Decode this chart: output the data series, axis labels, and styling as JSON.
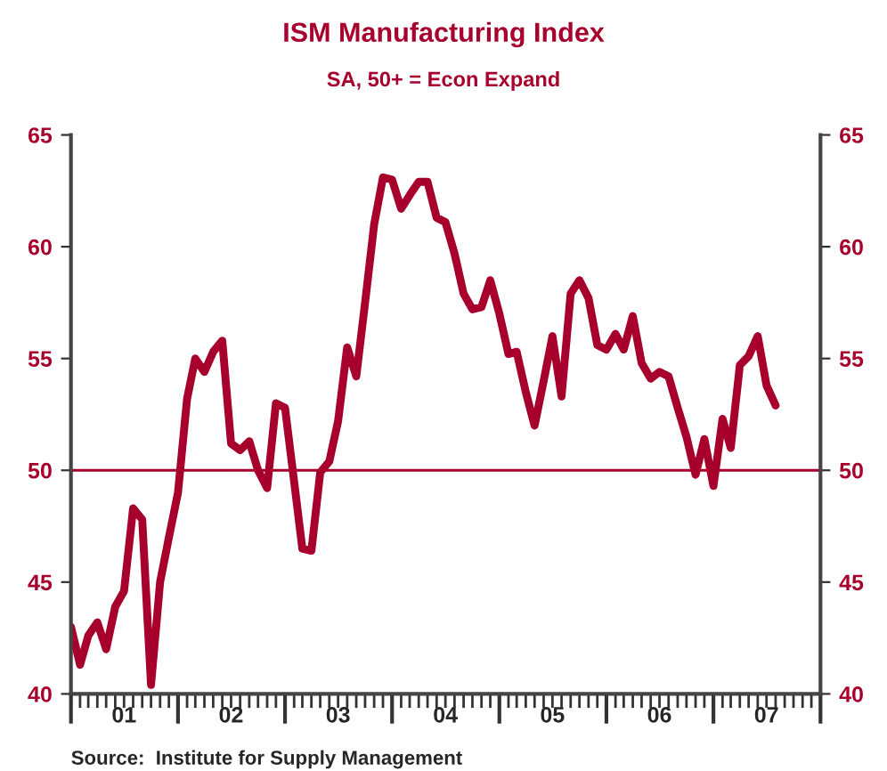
{
  "chart_data": {
    "type": "line",
    "title": "ISM Manufacturing Index",
    "subtitle": "SA, 50+ = Econ Expand",
    "x": [
      "2001-01",
      "2001-02",
      "2001-03",
      "2001-04",
      "2001-05",
      "2001-06",
      "2001-07",
      "2001-08",
      "2001-09",
      "2001-10",
      "2001-11",
      "2001-12",
      "2002-01",
      "2002-02",
      "2002-03",
      "2002-04",
      "2002-05",
      "2002-06",
      "2002-07",
      "2002-08",
      "2002-09",
      "2002-10",
      "2002-11",
      "2002-12",
      "2003-01",
      "2003-02",
      "2003-03",
      "2003-04",
      "2003-05",
      "2003-06",
      "2003-07",
      "2003-08",
      "2003-09",
      "2003-10",
      "2003-11",
      "2003-12",
      "2004-01",
      "2004-02",
      "2004-03",
      "2004-04",
      "2004-05",
      "2004-06",
      "2004-07",
      "2004-08",
      "2004-09",
      "2004-10",
      "2004-11",
      "2004-12",
      "2005-01",
      "2005-02",
      "2005-03",
      "2005-04",
      "2005-05",
      "2005-06",
      "2005-07",
      "2005-08",
      "2005-09",
      "2005-10",
      "2005-11",
      "2005-12",
      "2006-01",
      "2006-02",
      "2006-03",
      "2006-04",
      "2006-05",
      "2006-06",
      "2006-07",
      "2006-08",
      "2006-09",
      "2006-10",
      "2006-11",
      "2006-12",
      "2007-01",
      "2007-02",
      "2007-03",
      "2007-04",
      "2007-05",
      "2007-06",
      "2007-07",
      "2007-08"
    ],
    "series": [
      {
        "color": "#a8002c",
        "values": [
          43,
          41.3,
          42.6,
          43.2,
          42,
          43.9,
          44.6,
          48.3,
          47.8,
          40.4,
          45,
          47,
          49,
          53.2,
          55,
          54.4,
          55.3,
          55.8,
          51.2,
          50.9,
          51.3,
          50,
          49.2,
          53,
          52.8,
          49.5,
          46.5,
          46.4,
          49.9,
          50.4,
          52.2,
          55.5,
          54.2,
          57.5,
          61,
          63.1,
          63,
          61.7,
          62.3,
          62.9,
          62.9,
          61.3,
          61.1,
          59.7,
          57.9,
          57.2,
          57.3,
          58.5,
          57,
          55.2,
          55.3,
          53.5,
          52,
          54,
          56,
          53.3,
          57.9,
          58.5,
          57.7,
          55.6,
          55.4,
          56.1,
          55.4,
          56.9,
          54.8,
          54.1,
          54.4,
          54.2,
          52.8,
          51.5,
          49.8,
          51.4,
          49.3,
          52.3,
          51,
          54.7,
          55.1,
          56,
          53.8,
          52.9
        ]
      }
    ],
    "xlim": [
      "2001-01",
      "2008-01"
    ],
    "xticks": [
      {
        "value": "2001-01",
        "label": null
      },
      {
        "value": "2001-07",
        "label": "01"
      },
      {
        "value": "2002-01",
        "label": null
      },
      {
        "value": "2002-07",
        "label": "02"
      },
      {
        "value": "2003-01",
        "label": null
      },
      {
        "value": "2003-07",
        "label": "03"
      },
      {
        "value": "2004-01",
        "label": null
      },
      {
        "value": "2004-07",
        "label": "04"
      },
      {
        "value": "2005-01",
        "label": null
      },
      {
        "value": "2005-07",
        "label": "05"
      },
      {
        "value": "2006-01",
        "label": null
      },
      {
        "value": "2006-07",
        "label": "06"
      },
      {
        "value": "2007-01",
        "label": null
      },
      {
        "value": "2007-07",
        "label": "07"
      },
      {
        "value": "2008-01",
        "label": null
      }
    ],
    "ylim": [
      40,
      65
    ],
    "yticks": [
      40,
      45,
      50,
      55,
      60,
      65
    ],
    "y2lim": [
      40,
      65
    ],
    "y2ticks": [
      40,
      45,
      50,
      55,
      60,
      65
    ],
    "ref_lines": [
      {
        "axis": "y",
        "value": 50,
        "color": "#a8002c"
      }
    ],
    "grid": false,
    "line_style": "solid",
    "marker": "none",
    "annotations": [
      "Source:  Institute for Supply Management"
    ]
  }
}
